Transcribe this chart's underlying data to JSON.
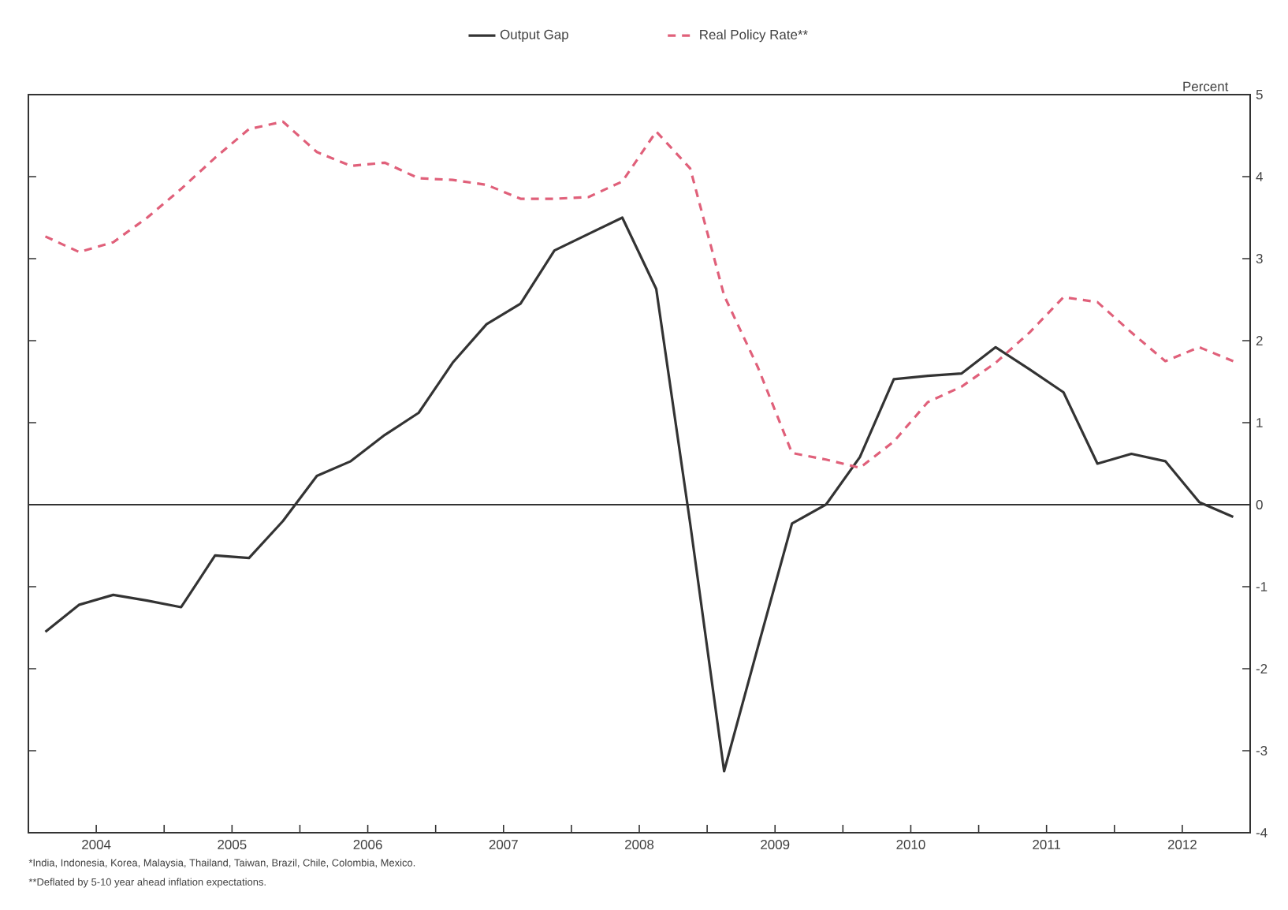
{
  "chart_data": {
    "type": "line",
    "x": [
      2004.125,
      2004.375,
      2004.625,
      2004.875,
      2005.125,
      2005.375,
      2005.625,
      2005.875,
      2006.125,
      2006.375,
      2006.625,
      2006.875,
      2007.125,
      2007.375,
      2007.625,
      2007.875,
      2008.125,
      2008.375,
      2008.625,
      2008.875,
      2009.125,
      2009.375,
      2009.625,
      2009.875,
      2010.125,
      2010.375,
      2010.625,
      2010.875,
      2011.125,
      2011.375,
      2011.625,
      2011.875,
      2012.125,
      2012.375,
      2012.625,
      2012.875
    ],
    "series": [
      {
        "name": "Output Gap",
        "color": "#333333",
        "line_style": "solid",
        "values": [
          -1.55,
          -1.22,
          -1.1,
          -1.17,
          -1.25,
          -0.62,
          -0.65,
          -0.2,
          0.35,
          0.53,
          0.85,
          1.12,
          1.73,
          2.2,
          2.45,
          3.1,
          3.3,
          3.5,
          2.63,
          -0.23,
          -3.25,
          -1.73,
          -0.23,
          0.0,
          0.58,
          1.53,
          1.57,
          1.6,
          1.92,
          1.65,
          1.37,
          0.5,
          0.62,
          0.53,
          0.03,
          -0.15
        ]
      },
      {
        "name": "Real Policy Rate**",
        "color": "#e0607a",
        "line_style": "dashed",
        "values": [
          3.27,
          3.08,
          3.2,
          3.5,
          3.85,
          4.23,
          4.58,
          4.67,
          4.3,
          4.13,
          4.17,
          3.98,
          3.96,
          3.9,
          3.73,
          3.73,
          3.75,
          3.94,
          4.55,
          4.1,
          2.55,
          1.67,
          0.63,
          0.55,
          0.45,
          0.77,
          1.25,
          1.44,
          1.73,
          2.1,
          2.53,
          2.47,
          2.1,
          1.75,
          1.92,
          1.75
        ]
      }
    ],
    "ylabel": "Percent",
    "xlim": [
      2004,
      2013
    ],
    "xticks": [
      {
        "value": 2004,
        "label": null
      },
      {
        "value": 2004.5,
        "label": "2004"
      },
      {
        "value": 2005,
        "label": null
      },
      {
        "value": 2005.5,
        "label": "2005"
      },
      {
        "value": 2006,
        "label": null
      },
      {
        "value": 2006.5,
        "label": "2006"
      },
      {
        "value": 2007,
        "label": null
      },
      {
        "value": 2007.5,
        "label": "2007"
      },
      {
        "value": 2008,
        "label": null
      },
      {
        "value": 2008.5,
        "label": "2008"
      },
      {
        "value": 2009,
        "label": null
      },
      {
        "value": 2009.5,
        "label": "2009"
      },
      {
        "value": 2010,
        "label": null
      },
      {
        "value": 2010.5,
        "label": "2010"
      },
      {
        "value": 2011,
        "label": null
      },
      {
        "value": 2011.5,
        "label": "2011"
      },
      {
        "value": 2012,
        "label": null
      },
      {
        "value": 2012.5,
        "label": "2012"
      },
      {
        "value": 2013,
        "label": null
      }
    ],
    "ylim": [
      -4,
      5
    ],
    "yticks": [
      -4,
      -3,
      -2,
      -1,
      0,
      1,
      2,
      3,
      4,
      5
    ],
    "ref_lines": [
      {
        "axis": "y",
        "value": 0,
        "color": "#333333"
      }
    ],
    "legend": "top",
    "annotations": [
      "*India, Indonesia, Korea, Malaysia, Thailand, Taiwan, Brazil, Chile, Colombia, Mexico.",
      "**Deflated by 5-10 year ahead inflation expectations."
    ]
  }
}
